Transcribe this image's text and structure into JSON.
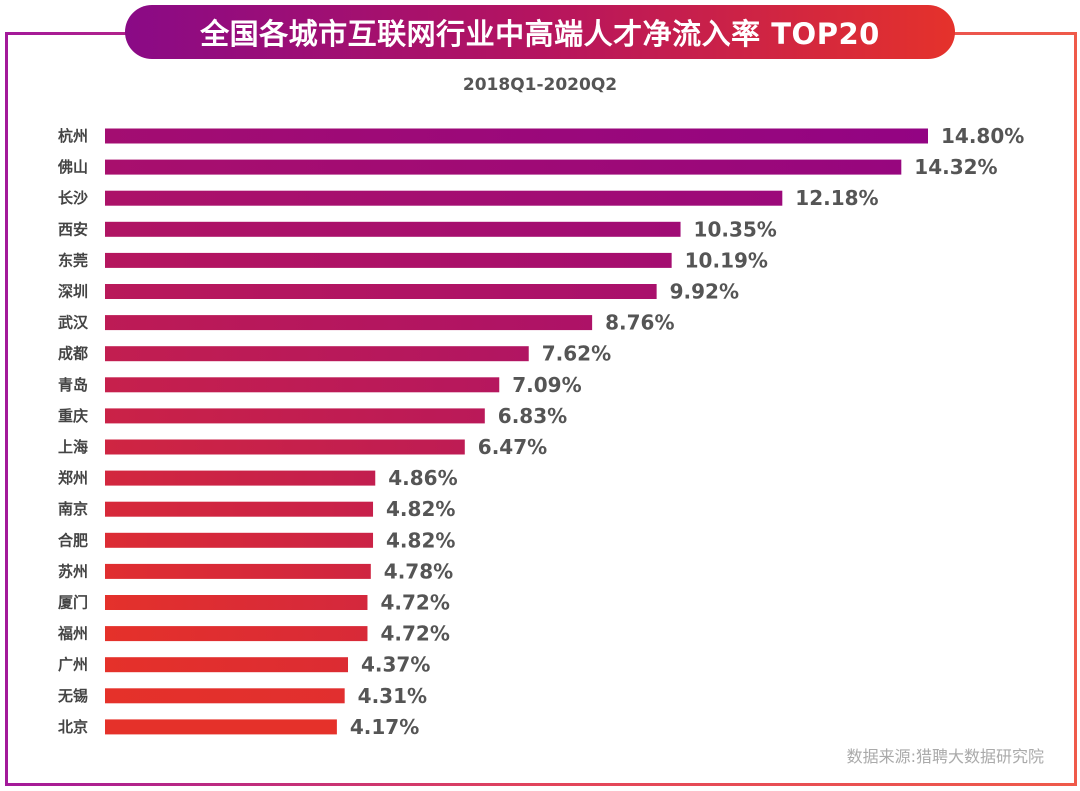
{
  "chart_data": {
    "type": "bar",
    "orientation": "horizontal",
    "title": "全国各城市互联网行业中高端人才净流入率 TOP20",
    "subtitle": "2018Q1-2020Q2",
    "source": "数据来源:猎聘大数据研究院",
    "categories": [
      "杭州",
      "佛山",
      "长沙",
      "西安",
      "东莞",
      "深圳",
      "武汉",
      "成都",
      "青岛",
      "重庆",
      "上海",
      "郑州",
      "南京",
      "合肥",
      "苏州",
      "厦门",
      "福州",
      "广州",
      "无锡",
      "北京"
    ],
    "values": [
      14.8,
      14.32,
      12.18,
      10.35,
      10.19,
      9.92,
      8.76,
      7.62,
      7.09,
      6.83,
      6.47,
      4.86,
      4.82,
      4.82,
      4.78,
      4.72,
      4.72,
      4.37,
      4.31,
      4.17
    ],
    "labels": [
      "14.80%",
      "14.32%",
      "12.18%",
      "10.35%",
      "10.19%",
      "9.92%",
      "8.76%",
      "7.62%",
      "7.09%",
      "6.83%",
      "6.47%",
      "4.86%",
      "4.82%",
      "4.82%",
      "4.78%",
      "4.72%",
      "4.72%",
      "4.37%",
      "4.31%",
      "4.17%"
    ],
    "unit": "%",
    "xlim": [
      0,
      14.8
    ],
    "grid": false,
    "colors": {
      "top": "#930483",
      "bottom": "#e5312a",
      "highlight_label": "#8e0a86",
      "label": "#555555"
    }
  }
}
